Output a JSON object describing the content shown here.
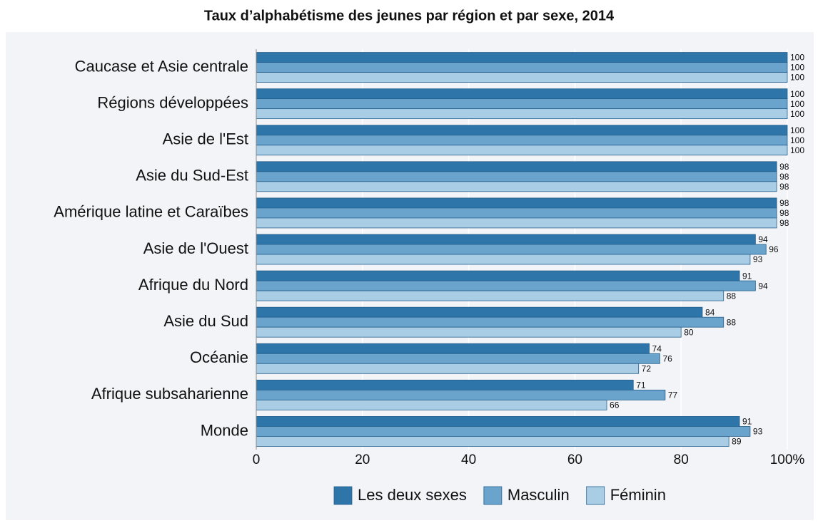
{
  "chart_data": {
    "type": "hbar",
    "title": "Taux d’alphabétisme des jeunes par région et par sexe, 2014",
    "categories": [
      "Caucase et Asie centrale",
      "Régions développées",
      "Asie de l'Est",
      "Asie du Sud-Est",
      "Amérique latine et Caraïbes",
      "Asie de l'Ouest",
      "Afrique du Nord",
      "Asie du Sud",
      "Océanie",
      "Afrique subsaharienne",
      "Monde"
    ],
    "series": [
      {
        "name": "Les deux sexes",
        "color": "#2e75aa",
        "values": [
          100,
          100,
          100,
          98,
          98,
          94,
          91,
          84,
          74,
          71,
          91
        ]
      },
      {
        "name": "Masculin",
        "color": "#6aa3cb",
        "values": [
          100,
          100,
          100,
          98,
          98,
          96,
          94,
          88,
          76,
          77,
          93
        ]
      },
      {
        "name": "Féminin",
        "color": "#a9cde5",
        "values": [
          100,
          100,
          100,
          98,
          98,
          93,
          88,
          80,
          72,
          66,
          89
        ]
      }
    ],
    "xlim": [
      0,
      100
    ],
    "xticks": [
      0,
      20,
      40,
      60,
      80,
      {
        "value": 100,
        "label": "100%"
      }
    ],
    "grid": true,
    "legend": "bottom"
  }
}
